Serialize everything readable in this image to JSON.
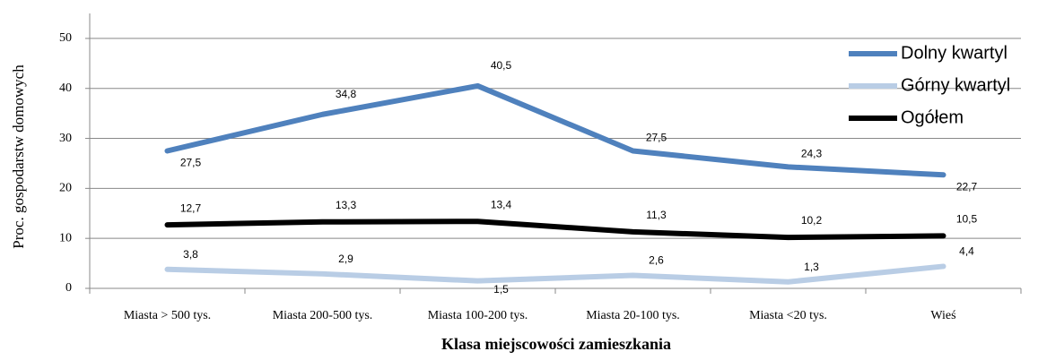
{
  "chart_data": {
    "type": "line",
    "y_label": "Proc.  gospodarstw domowych",
    "x_label": "Klasa miejscowości zamieszkania",
    "categories": [
      "Miasta > 500 tys.",
      "Miasta 200-500 tys.",
      "Miasta 100-200 tys.",
      "Miasta 20-100 tys.",
      "Miasta <20 tys.",
      "Wieś"
    ],
    "series": [
      {
        "name": "Dolny kwartyl",
        "color": "#4f81bd",
        "values": [
          27.5,
          34.8,
          40.5,
          27.5,
          24.3,
          22.7
        ],
        "value_labels": [
          "27,5",
          "34,8",
          "40,5",
          "27,5",
          "24,3",
          "22,7"
        ]
      },
      {
        "name": "Górny kwartyl",
        "color": "#b9cde5",
        "values": [
          3.8,
          2.9,
          1.5,
          2.6,
          1.3,
          4.4
        ],
        "value_labels": [
          "3,8",
          "2,9",
          "1,5",
          "2,6",
          "1,3",
          "4,4"
        ]
      },
      {
        "name": "Ogółem",
        "color": "#000000",
        "values": [
          12.7,
          13.3,
          13.4,
          11.3,
          10.2,
          10.5
        ],
        "value_labels": [
          "12,7",
          "13,3",
          "13,4",
          "11,3",
          "10,2",
          "10,5"
        ]
      }
    ],
    "ylim": [
      0,
      55
    ],
    "yticks": [
      0,
      10,
      20,
      30,
      40,
      50
    ],
    "grid": true,
    "legend": "upper right"
  }
}
